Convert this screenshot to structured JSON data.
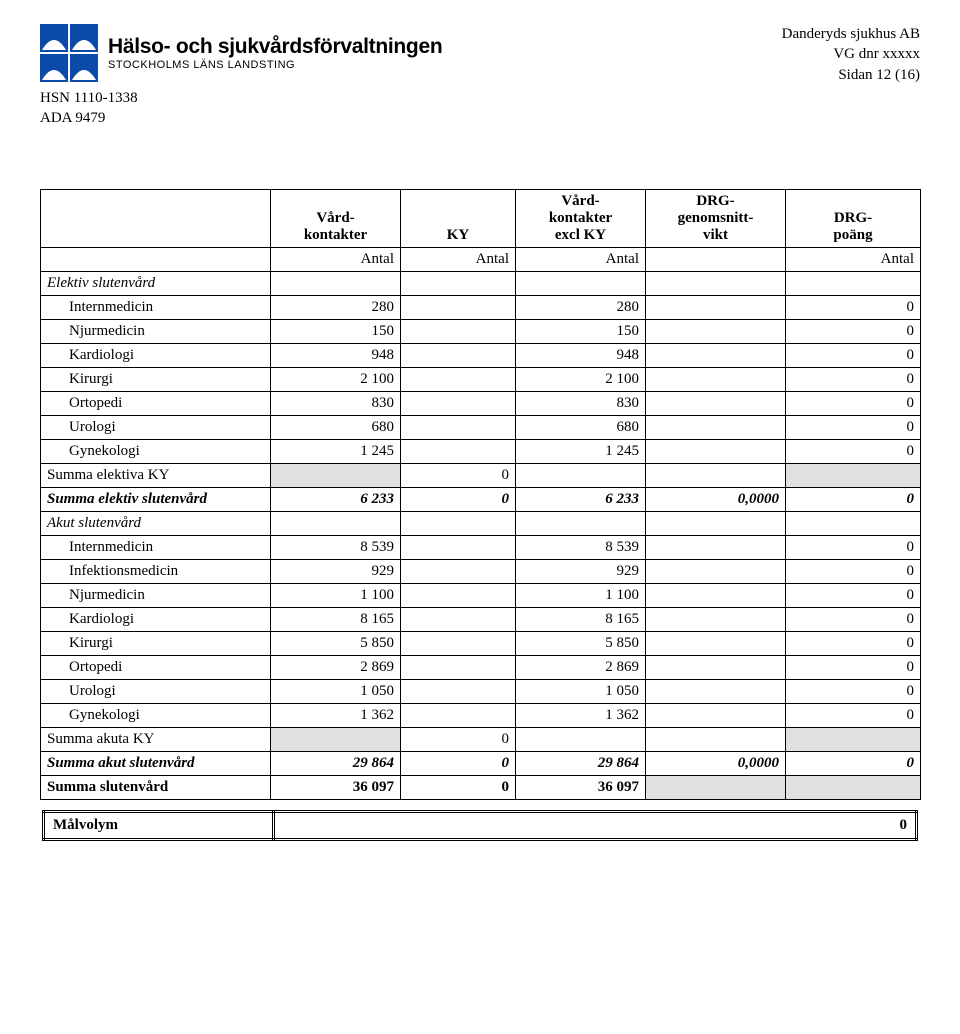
{
  "header": {
    "org_title": "Hälso- och sjukvårdsförvaltningen",
    "org_sub": "STOCKHOLMS LÄNS LANDSTING",
    "code1": "HSN 1110-1338",
    "code2": "ADA 9479",
    "hospital": "Danderyds sjukhus AB",
    "vg_dnr": "VG dnr xxxxx",
    "page": "Sidan 12 (16)",
    "logo_color": "#0b4aa8"
  },
  "table": {
    "columns": [
      "",
      "Vård-\nkontakter",
      "KY",
      "Vård-\nkontakter\nexcl KY",
      "DRG-\ngenomsnitt-\nvikt",
      "DRG-\npoäng"
    ],
    "unit_row": [
      "",
      "Antal",
      "Antal",
      "Antal",
      "",
      "Antal"
    ],
    "sections": [
      {
        "title": "Elektiv slutenvård",
        "title_italic": true,
        "rows": [
          {
            "label": "Internmedicin",
            "v": [
              "280",
              "",
              "280",
              "",
              "0"
            ]
          },
          {
            "label": "Njurmedicin",
            "v": [
              "150",
              "",
              "150",
              "",
              "0"
            ]
          },
          {
            "label": "Kardiologi",
            "v": [
              "948",
              "",
              "948",
              "",
              "0"
            ]
          },
          {
            "label": "Kirurgi",
            "v": [
              "2 100",
              "",
              "2 100",
              "",
              "0"
            ]
          },
          {
            "label": "Ortopedi",
            "v": [
              "830",
              "",
              "830",
              "",
              "0"
            ]
          },
          {
            "label": "Urologi",
            "v": [
              "680",
              "",
              "680",
              "",
              "0"
            ]
          },
          {
            "label": "Gynekologi",
            "v": [
              "1 245",
              "",
              "1 245",
              "",
              "0"
            ]
          }
        ],
        "ky_sum": {
          "label": "Summa elektiva KY",
          "ky": "0"
        },
        "sum": {
          "label": "Summa elektiv slutenvård",
          "v": [
            "6 233",
            "0",
            "6 233",
            "0,0000",
            "0"
          ]
        }
      },
      {
        "title": "Akut slutenvård",
        "title_italic": true,
        "rows": [
          {
            "label": "Internmedicin",
            "v": [
              "8 539",
              "",
              "8 539",
              "",
              "0"
            ]
          },
          {
            "label": "Infektionsmedicin",
            "v": [
              "929",
              "",
              "929",
              "",
              "0"
            ]
          },
          {
            "label": "Njurmedicin",
            "v": [
              "1 100",
              "",
              "1 100",
              "",
              "0"
            ]
          },
          {
            "label": "Kardiologi",
            "v": [
              "8 165",
              "",
              "8 165",
              "",
              "0"
            ]
          },
          {
            "label": "Kirurgi",
            "v": [
              "5 850",
              "",
              "5 850",
              "",
              "0"
            ]
          },
          {
            "label": "Ortopedi",
            "v": [
              "2 869",
              "",
              "2 869",
              "",
              "0"
            ]
          },
          {
            "label": "Urologi",
            "v": [
              "1 050",
              "",
              "1 050",
              "",
              "0"
            ]
          },
          {
            "label": "Gynekologi",
            "v": [
              "1 362",
              "",
              "1 362",
              "",
              "0"
            ]
          }
        ],
        "ky_sum": {
          "label": "Summa akuta KY",
          "ky": "0"
        },
        "sum": {
          "label": "Summa akut slutenvård",
          "v": [
            "29 864",
            "0",
            "29 864",
            "0,0000",
            "0"
          ]
        }
      }
    ],
    "grand": {
      "label": "Summa slutenvård",
      "v": [
        "36 097",
        "0",
        "36 097",
        "",
        ""
      ]
    },
    "shade_color": "#e0e0e0"
  },
  "malvolym": {
    "label": "Målvolym",
    "value": "0"
  }
}
